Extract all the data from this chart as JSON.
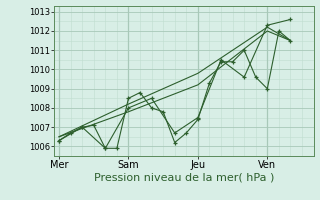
{
  "bg_color": "#d8eee6",
  "grid_color_major": "#a8c8b8",
  "grid_color_minor": "#c0ddd0",
  "line_color": "#2d5f2d",
  "xlabel": "Pression niveau de la mer( hPa )",
  "xlabel_fontsize": 8,
  "ytick_fontsize": 6,
  "xtick_fontsize": 7,
  "ylim": [
    1005.5,
    1013.3
  ],
  "yticks": [
    1006,
    1007,
    1008,
    1009,
    1010,
    1011,
    1012,
    1013
  ],
  "xtick_labels": [
    "Mer",
    "Sam",
    "Jeu",
    "Ven"
  ],
  "xtick_positions": [
    0,
    30,
    60,
    90
  ],
  "xlim": [
    -2,
    110
  ],
  "vline_positions": [
    0,
    30,
    60,
    90
  ],
  "series1_x": [
    0,
    5,
    10,
    15,
    20,
    25,
    30,
    35,
    40,
    45,
    50,
    55,
    60,
    65,
    70,
    75,
    80,
    85,
    90,
    95,
    100
  ],
  "series1_y": [
    1006.3,
    1006.7,
    1007.0,
    1007.1,
    1005.9,
    1005.9,
    1008.5,
    1008.8,
    1008.0,
    1007.8,
    1006.2,
    1006.7,
    1007.4,
    1009.3,
    1010.4,
    1010.4,
    1011.0,
    1009.6,
    1009.0,
    1012.0,
    1011.5
  ],
  "series2_x": [
    0,
    10,
    20,
    30,
    40,
    50,
    60,
    70,
    80,
    90,
    100
  ],
  "series2_y": [
    1006.3,
    1007.0,
    1005.9,
    1008.0,
    1008.5,
    1006.7,
    1007.5,
    1010.5,
    1009.6,
    1012.3,
    1012.6
  ],
  "series3_x": [
    0,
    30,
    60,
    90,
    100
  ],
  "series3_y": [
    1006.5,
    1007.8,
    1009.2,
    1012.0,
    1011.5
  ],
  "series4_x": [
    0,
    30,
    60,
    90,
    100
  ],
  "series4_y": [
    1006.5,
    1008.2,
    1009.8,
    1012.2,
    1011.5
  ]
}
